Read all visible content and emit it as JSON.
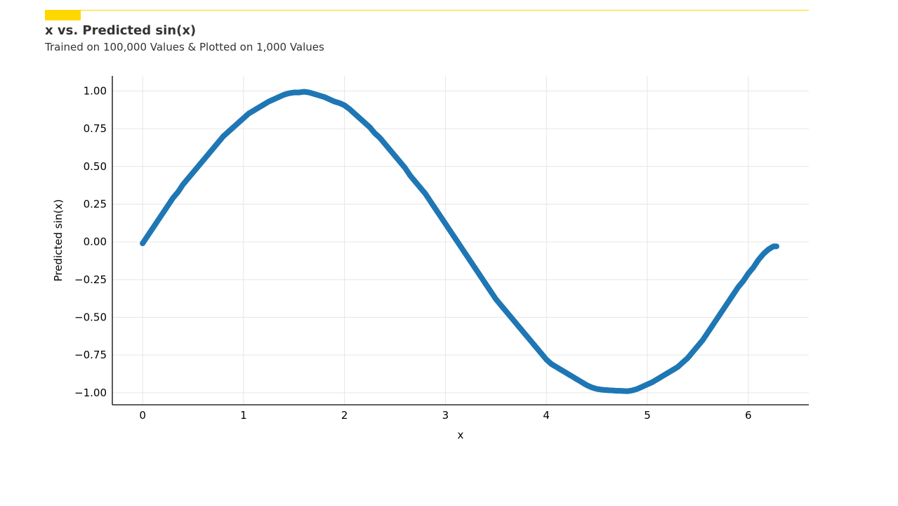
{
  "header": {
    "title": "x vs. Predicted sin(x)",
    "subtitle": "Trained on 100,000 Values & Plotted on 1,000 Values",
    "accent_color": "#FFD700"
  },
  "chart_data": {
    "type": "scatter",
    "title": "x vs. Predicted sin(x)",
    "subtitle": "Trained on 100,000 Values & Plotted on 1,000 Values",
    "xlabel": "x",
    "ylabel": "Predicted sin(x)",
    "xlim": [
      -0.3,
      6.6
    ],
    "ylim": [
      -1.08,
      1.1
    ],
    "xticks": [
      0,
      1,
      2,
      3,
      4,
      5,
      6
    ],
    "xtick_labels": [
      "0",
      "1",
      "2",
      "3",
      "4",
      "5",
      "6"
    ],
    "yticks": [
      1.0,
      0.75,
      0.5,
      0.25,
      0.0,
      -0.25,
      -0.5,
      -0.75,
      -1.0
    ],
    "ytick_labels": [
      "1.00",
      "0.75",
      "0.50",
      "0.25",
      "0.00",
      "−0.25",
      "−0.50",
      "−0.75",
      "−1.00"
    ],
    "grid": true,
    "color": "#1f77b4",
    "series": [
      {
        "x": [
          0.0,
          0.05,
          0.1,
          0.15,
          0.2,
          0.25,
          0.3,
          0.35,
          0.4,
          0.45,
          0.5,
          0.55,
          0.6,
          0.65,
          0.7,
          0.75,
          0.8,
          0.85,
          0.9,
          0.95,
          1.0,
          1.05,
          1.1,
          1.15,
          1.2,
          1.25,
          1.3,
          1.35,
          1.4,
          1.45,
          1.5,
          1.55,
          1.6,
          1.65,
          1.7,
          1.75,
          1.8,
          1.85,
          1.9,
          1.95,
          2.0,
          2.05,
          2.1,
          2.15,
          2.2,
          2.25,
          2.3,
          2.35,
          2.4,
          2.45,
          2.5,
          2.55,
          2.6,
          2.65,
          2.7,
          2.75,
          2.8,
          2.85,
          2.9,
          2.95,
          3.0,
          3.05,
          3.1,
          3.15,
          3.2,
          3.25,
          3.3,
          3.35,
          3.4,
          3.45,
          3.5,
          3.55,
          3.6,
          3.65,
          3.7,
          3.75,
          3.8,
          3.85,
          3.9,
          3.95,
          4.0,
          4.05,
          4.1,
          4.15,
          4.2,
          4.25,
          4.3,
          4.35,
          4.4,
          4.45,
          4.5,
          4.55,
          4.6,
          4.65,
          4.7,
          4.75,
          4.8,
          4.85,
          4.9,
          4.95,
          5.0,
          5.05,
          5.1,
          5.15,
          5.2,
          5.25,
          5.3,
          5.35,
          5.4,
          5.45,
          5.5,
          5.55,
          5.6,
          5.65,
          5.7,
          5.75,
          5.8,
          5.85,
          5.9,
          5.95,
          6.0,
          6.05,
          6.1,
          6.15,
          6.2,
          6.25,
          6.28
        ],
        "y": [
          -0.01,
          0.04,
          0.09,
          0.14,
          0.19,
          0.24,
          0.29,
          0.33,
          0.38,
          0.42,
          0.46,
          0.5,
          0.54,
          0.58,
          0.62,
          0.66,
          0.7,
          0.73,
          0.76,
          0.79,
          0.82,
          0.85,
          0.87,
          0.89,
          0.91,
          0.93,
          0.945,
          0.96,
          0.975,
          0.985,
          0.99,
          0.99,
          0.995,
          0.99,
          0.98,
          0.97,
          0.96,
          0.945,
          0.93,
          0.92,
          0.905,
          0.88,
          0.85,
          0.82,
          0.79,
          0.76,
          0.72,
          0.69,
          0.65,
          0.61,
          0.57,
          0.53,
          0.49,
          0.44,
          0.4,
          0.36,
          0.32,
          0.27,
          0.22,
          0.17,
          0.12,
          0.07,
          0.02,
          -0.03,
          -0.08,
          -0.13,
          -0.18,
          -0.23,
          -0.28,
          -0.33,
          -0.38,
          -0.42,
          -0.46,
          -0.5,
          -0.54,
          -0.58,
          -0.62,
          -0.66,
          -0.7,
          -0.74,
          -0.78,
          -0.81,
          -0.83,
          -0.85,
          -0.87,
          -0.89,
          -0.91,
          -0.93,
          -0.95,
          -0.965,
          -0.975,
          -0.98,
          -0.983,
          -0.985,
          -0.987,
          -0.988,
          -0.99,
          -0.985,
          -0.975,
          -0.96,
          -0.945,
          -0.93,
          -0.91,
          -0.89,
          -0.87,
          -0.85,
          -0.83,
          -0.8,
          -0.77,
          -0.73,
          -0.69,
          -0.65,
          -0.6,
          -0.55,
          -0.5,
          -0.45,
          -0.4,
          -0.35,
          -0.3,
          -0.26,
          -0.21,
          -0.17,
          -0.12,
          -0.08,
          -0.05,
          -0.03,
          -0.03
        ]
      }
    ]
  }
}
